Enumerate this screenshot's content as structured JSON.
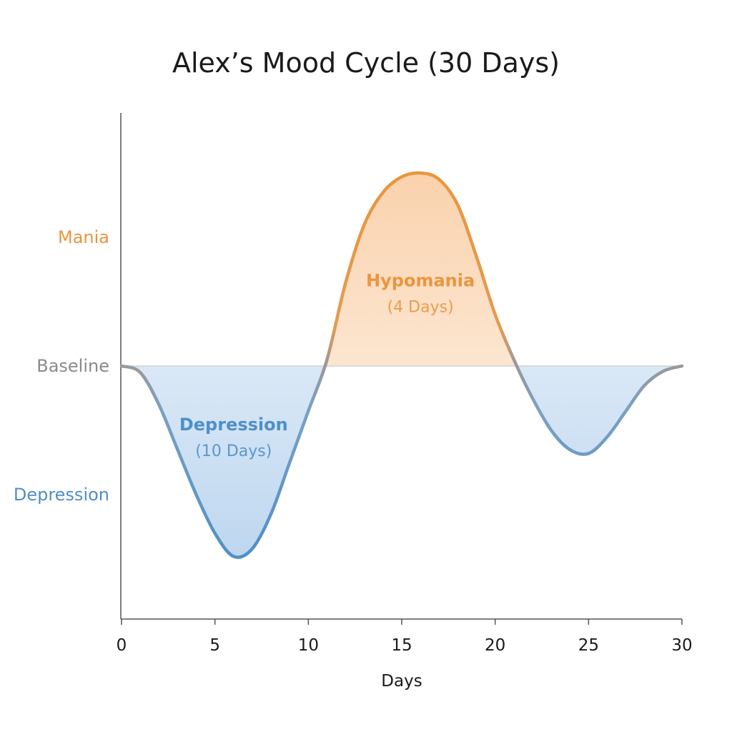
{
  "chart_data": {
    "type": "area",
    "title": "Alex’s Mood Cycle (30 Days)",
    "xlabel": "Days",
    "ylabel": "",
    "xlim": [
      0,
      30
    ],
    "xticks": [
      0,
      5,
      10,
      15,
      20,
      25,
      30
    ],
    "ylim": [
      -1.6,
      2.0
    ],
    "y_levels": [
      {
        "label": "Mania",
        "value": 1.0,
        "color": "#e8963f"
      },
      {
        "label": "Baseline",
        "value": 0.0,
        "color": "#8a8a8a"
      },
      {
        "label": "Depression",
        "value": -1.0,
        "color": "#4f8fc7"
      }
    ],
    "series": [
      {
        "x": [
          0,
          1,
          2,
          3,
          4,
          5,
          6,
          7,
          8,
          9,
          10,
          11,
          12,
          13,
          14,
          15,
          16,
          17,
          18,
          19,
          20,
          21,
          22,
          23,
          24,
          25,
          26,
          27,
          28,
          29,
          30
        ],
        "values": [
          0,
          -0.05,
          -0.3,
          -0.65,
          -1.0,
          -1.3,
          -1.48,
          -1.42,
          -1.15,
          -0.75,
          -0.35,
          0.05,
          0.65,
          1.1,
          1.35,
          1.47,
          1.5,
          1.45,
          1.25,
          0.85,
          0.4,
          0.05,
          -0.25,
          -0.5,
          -0.65,
          -0.68,
          -0.55,
          -0.35,
          -0.15,
          -0.04,
          0
        ]
      }
    ],
    "annotations": [
      {
        "label": "Depression",
        "sublabel": "(10 Days)",
        "x": 6,
        "y": -0.5,
        "color": "#4f8fc7"
      },
      {
        "label": "Hypomania",
        "sublabel": "(4 Days)",
        "x": 16,
        "y": 0.62,
        "color": "#e8963f"
      }
    ],
    "colors": {
      "positive": "#e8963f",
      "negative": "#4f8fc7",
      "baseline": "#8a8a8a",
      "axis": "#555555"
    }
  }
}
